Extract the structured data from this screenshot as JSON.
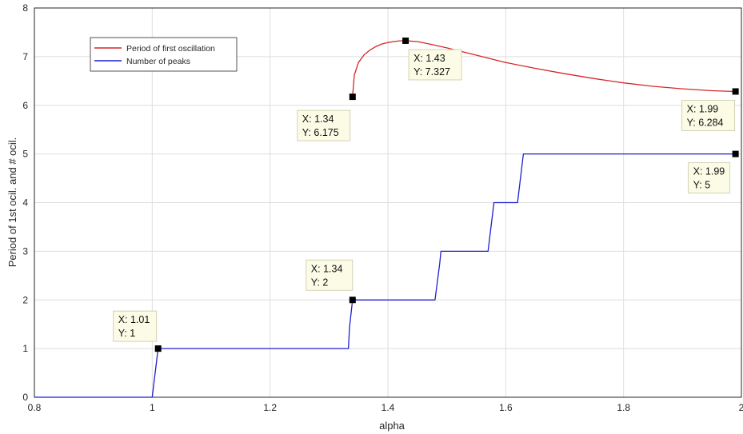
{
  "chart_data": {
    "type": "line",
    "xlabel": "alpha",
    "ylabel": "Period of 1st ocil. and # ocil.",
    "xlim": [
      0.8,
      2.0
    ],
    "ylim": [
      0,
      8
    ],
    "grid": true,
    "legend_placement": "top-left",
    "x_ticks": [
      "0.8",
      "1",
      "1.2",
      "1.4",
      "1.6",
      "1.8",
      "2"
    ],
    "y_ticks": [
      "0",
      "1",
      "2",
      "3",
      "4",
      "5",
      "6",
      "7",
      "8"
    ],
    "series": [
      {
        "name": "Period of first oscillation",
        "color": "#d62728",
        "x": [
          1.34,
          1.343,
          1.35,
          1.36,
          1.37,
          1.38,
          1.39,
          1.4,
          1.41,
          1.42,
          1.43,
          1.45,
          1.47,
          1.5,
          1.55,
          1.6,
          1.65,
          1.7,
          1.75,
          1.8,
          1.85,
          1.9,
          1.95,
          1.99
        ],
        "values": [
          6.175,
          6.62,
          6.88,
          7.04,
          7.14,
          7.21,
          7.26,
          7.29,
          7.31,
          7.325,
          7.327,
          7.31,
          7.26,
          7.18,
          7.03,
          6.88,
          6.76,
          6.65,
          6.55,
          6.46,
          6.39,
          6.34,
          6.3,
          6.284
        ]
      },
      {
        "name": "Number of peaks",
        "color": "#1f1fd0",
        "x": [
          0.8,
          1.0,
          1.01,
          1.333,
          1.335,
          1.34,
          1.34,
          1.48,
          1.488,
          1.49,
          1.57,
          1.58,
          1.58,
          1.62,
          1.63,
          1.99
        ],
        "values": [
          0,
          0,
          1,
          1,
          1.45,
          2,
          2,
          2,
          2.75,
          3,
          3,
          4,
          4,
          4,
          5,
          5
        ]
      }
    ],
    "datatips": [
      {
        "x": 1.01,
        "y": 1,
        "x_text": "X: 1.01",
        "y_text": "Y: 1"
      },
      {
        "x": 1.34,
        "y": 2,
        "x_text": "X: 1.34",
        "y_text": "Y: 2"
      },
      {
        "x": 1.34,
        "y": 6.175,
        "x_text": "X: 1.34",
        "y_text": "Y: 6.175"
      },
      {
        "x": 1.43,
        "y": 7.327,
        "x_text": "X: 1.43",
        "y_text": "Y: 7.327"
      },
      {
        "x": 1.99,
        "y": 6.284,
        "x_text": "X: 1.99",
        "y_text": "Y: 6.284"
      },
      {
        "x": 1.99,
        "y": 5,
        "x_text": "X: 1.99",
        "y_text": "Y: 5"
      }
    ]
  }
}
